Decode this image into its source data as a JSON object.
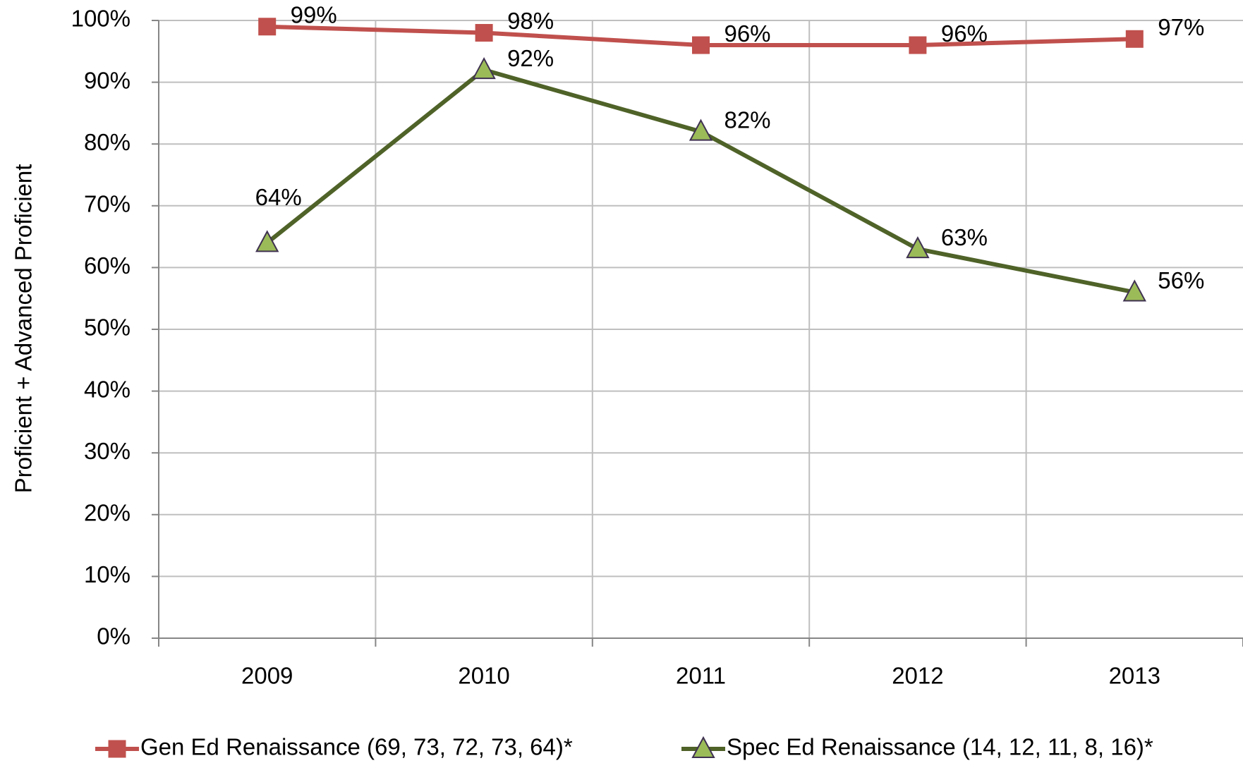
{
  "chart_data": {
    "type": "line",
    "ylabel": "Proficient + Advanced Proficient",
    "categories": [
      "2009",
      "2010",
      "2011",
      "2012",
      "2013"
    ],
    "series": [
      {
        "name": "Gen Ed Renaissance (69, 73, 72, 73, 64)*",
        "color": "#c0504d",
        "marker": "square",
        "values": [
          99,
          98,
          96,
          96,
          97
        ],
        "value_labels": [
          "99%",
          "98%",
          "96%",
          "96%",
          "97%"
        ]
      },
      {
        "name": "Spec Ed Renaissance (14, 12, 11, 8, 16)*",
        "color": "#4f6228",
        "marker_color": "#9bbb59",
        "marker": "triangle",
        "values": [
          64,
          92,
          82,
          63,
          56
        ],
        "value_labels": [
          "64%",
          "92%",
          "82%",
          "63%",
          "56%"
        ]
      }
    ],
    "ylim": [
      0,
      100
    ],
    "yticks": [
      {
        "value": 0,
        "label": "0%"
      },
      {
        "value": 10,
        "label": "10%"
      },
      {
        "value": 20,
        "label": "20%"
      },
      {
        "value": 30,
        "label": "30%"
      },
      {
        "value": 40,
        "label": "40%"
      },
      {
        "value": 50,
        "label": "50%"
      },
      {
        "value": 60,
        "label": "60%"
      },
      {
        "value": 70,
        "label": "70%"
      },
      {
        "value": 80,
        "label": "80%"
      },
      {
        "value": 90,
        "label": "90%"
      },
      {
        "value": 100,
        "label": "100%"
      }
    ],
    "grid": true,
    "legend": "bottom"
  }
}
